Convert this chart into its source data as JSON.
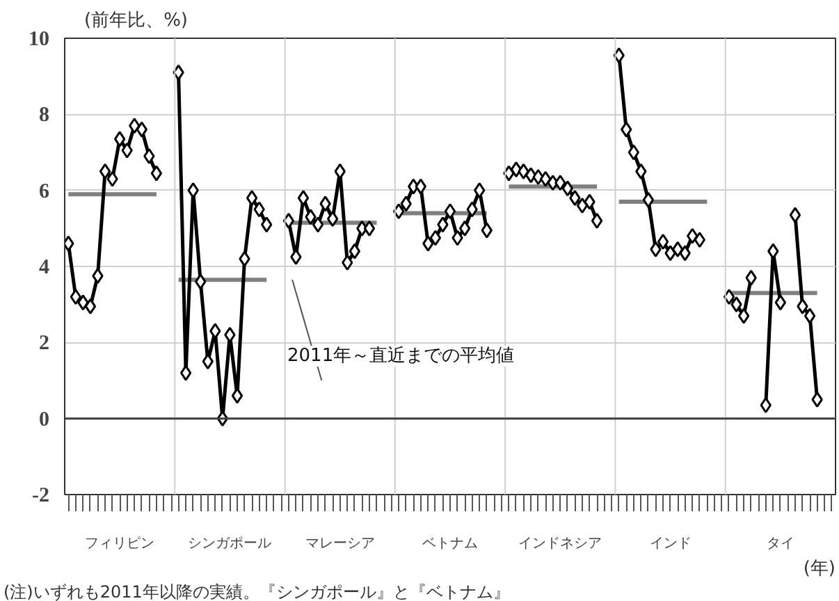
{
  "chart_data": {
    "type": "line",
    "ylabel": "(前年比、%)",
    "xlabel": "(年)",
    "categories": [
      null,
      null,
      null,
      null,
      null,
      null,
      null,
      "フィリピン",
      null,
      null,
      null,
      null,
      null,
      null,
      null,
      null,
      null,
      null,
      null,
      null,
      null,
      null,
      "シンガポール",
      null,
      null,
      null,
      null,
      null,
      null,
      null,
      null,
      null,
      null,
      null,
      null,
      null,
      null,
      "マレーシア",
      null,
      null,
      null,
      null,
      null,
      null,
      null,
      null,
      null,
      null,
      null,
      null,
      null,
      null,
      "ベトナム",
      null,
      null,
      null,
      null,
      null,
      null,
      null,
      null,
      null,
      null,
      null,
      null,
      null,
      null,
      "インドネシア",
      null,
      null,
      null,
      null,
      null,
      null,
      null,
      null,
      null,
      null,
      null,
      null,
      null,
      null,
      "インド",
      null,
      null,
      null,
      null,
      null,
      null,
      null,
      null,
      null,
      null,
      null,
      null,
      null,
      null,
      "タイ",
      null,
      null,
      null,
      null,
      null,
      null,
      null
    ],
    "series": [
      {
        "marker": "none",
        "color": "#808080",
        "values": [
          5.9,
          5.9,
          5.9,
          5.9,
          5.9,
          5.9,
          5.9,
          5.9,
          5.9,
          5.9,
          5.9,
          5.9,
          5.9,
          null,
          null,
          3.65,
          3.65,
          3.65,
          3.65,
          3.65,
          3.65,
          3.65,
          3.65,
          3.65,
          3.65,
          3.65,
          3.65,
          3.65,
          null,
          null,
          5.15,
          5.15,
          5.15,
          5.15,
          5.15,
          5.15,
          5.15,
          5.15,
          5.15,
          5.15,
          5.15,
          5.15,
          5.15,
          null,
          null,
          5.4,
          5.4,
          5.4,
          5.4,
          5.4,
          5.4,
          5.4,
          5.4,
          5.4,
          5.4,
          5.4,
          5.4,
          5.4,
          null,
          null,
          6.1,
          6.1,
          6.1,
          6.1,
          6.1,
          6.1,
          6.1,
          6.1,
          6.1,
          6.1,
          6.1,
          6.1,
          6.1,
          null,
          null,
          5.7,
          5.7,
          5.7,
          5.7,
          5.7,
          5.7,
          5.7,
          5.7,
          5.7,
          5.7,
          5.7,
          5.7,
          5.7,
          null,
          null,
          3.3,
          3.3,
          3.3,
          3.3,
          3.3,
          3.3,
          3.3,
          3.3,
          3.3,
          3.3,
          3.3,
          3.3,
          3.3,
          null,
          null
        ]
      },
      {
        "marker": "diamond",
        "color": "#000000",
        "values": [
          4.6,
          3.2,
          3.05,
          2.95,
          3.75,
          6.5,
          6.3,
          7.35,
          7.05,
          7.7,
          7.6,
          6.9,
          6.45,
          null,
          null,
          9.1,
          1.2,
          6.0,
          3.6,
          1.5,
          2.3,
          0.0,
          2.2,
          0.6,
          4.2,
          5.8,
          5.5,
          5.1,
          null,
          null,
          5.2,
          4.25,
          5.8,
          5.3,
          5.1,
          5.65,
          5.25,
          6.5,
          4.1,
          4.4,
          5.0,
          5.0,
          null,
          null,
          null,
          5.45,
          5.65,
          6.1,
          6.1,
          4.6,
          4.75,
          5.1,
          5.45,
          4.75,
          5.0,
          5.5,
          6.0,
          4.95,
          null,
          null,
          6.45,
          6.55,
          6.5,
          6.4,
          6.35,
          6.3,
          6.2,
          6.2,
          6.05,
          5.8,
          5.6,
          5.7,
          5.2,
          null,
          null,
          9.55,
          7.6,
          7.0,
          6.5,
          5.75,
          4.45,
          4.65,
          4.35,
          4.45,
          4.35,
          4.8,
          4.7,
          null,
          null,
          null,
          3.2,
          3.0,
          2.7,
          3.7,
          null,
          0.35,
          4.4,
          3.05,
          null,
          5.35,
          2.95,
          2.7,
          0.5,
          null,
          null
        ]
      }
    ],
    "ylim": [
      -2,
      10
    ],
    "yticks": [
      -2,
      0,
      2,
      4,
      6,
      8,
      10
    ],
    "grid": "y",
    "ref_lines": [
      {
        "axis": "y",
        "value": 0,
        "color": "#404040"
      }
    ],
    "annotations": [
      "2011年～直近までの平均値",
      "(注)いずれも2011年以降の実績。『シンガポール』と『ベトナム』"
    ]
  }
}
